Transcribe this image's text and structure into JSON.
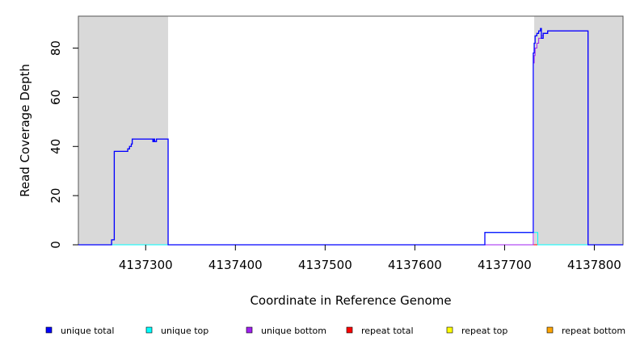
{
  "chart_data": {
    "type": "line",
    "title": "",
    "xlabel": "Coordinate in Reference Genome",
    "ylabel": "Read Coverage Depth",
    "xlim": [
      4137225,
      4137832
    ],
    "ylim": [
      0,
      93
    ],
    "x_ticks": [
      4137300,
      4137400,
      4137500,
      4137600,
      4137700,
      4137800
    ],
    "x_tick_labels": [
      "4137300",
      "4137400",
      "4137500",
      "4137600",
      "4137700",
      "4137800"
    ],
    "y_ticks": [
      0,
      20,
      40,
      60,
      80
    ],
    "y_tick_labels": [
      "0",
      "20",
      "40",
      "60",
      "80"
    ],
    "grid": false,
    "legend_position": "bottom",
    "shaded_regions": [
      [
        4137225,
        4137325
      ],
      [
        4137733,
        4137832
      ]
    ],
    "series": [
      {
        "name": "unique total",
        "color": "#0000ff",
        "step_points": [
          [
            4137225,
            0
          ],
          [
            4137262,
            0
          ],
          [
            4137262,
            2
          ],
          [
            4137265,
            2
          ],
          [
            4137265,
            38
          ],
          [
            4137280,
            38
          ],
          [
            4137280,
            39
          ],
          [
            4137282,
            39
          ],
          [
            4137282,
            40
          ],
          [
            4137284,
            40
          ],
          [
            4137284,
            41
          ],
          [
            4137285,
            41
          ],
          [
            4137285,
            43
          ],
          [
            4137308,
            43
          ],
          [
            4137308,
            42
          ],
          [
            4137309,
            42
          ],
          [
            4137309,
            43
          ],
          [
            4137310,
            43
          ],
          [
            4137310,
            42
          ],
          [
            4137312,
            42
          ],
          [
            4137312,
            43
          ],
          [
            4137325,
            43
          ],
          [
            4137325,
            0
          ],
          [
            4137678,
            0
          ],
          [
            4137678,
            5
          ],
          [
            4137732,
            5
          ],
          [
            4137732,
            78
          ],
          [
            4137733,
            78
          ],
          [
            4137733,
            82
          ],
          [
            4137734,
            82
          ],
          [
            4137734,
            85
          ],
          [
            4137736,
            85
          ],
          [
            4137736,
            86
          ],
          [
            4137738,
            86
          ],
          [
            4137738,
            87
          ],
          [
            4137740,
            87
          ],
          [
            4137740,
            88
          ],
          [
            4137741,
            88
          ],
          [
            4137741,
            84
          ],
          [
            4137743,
            84
          ],
          [
            4137743,
            86
          ],
          [
            4137748,
            86
          ],
          [
            4137748,
            87
          ],
          [
            4137793,
            87
          ],
          [
            4137793,
            0
          ],
          [
            4137832,
            0
          ]
        ]
      },
      {
        "name": "unique top",
        "color": "#00ffff",
        "step_points": [
          [
            4137225,
            0
          ],
          [
            4137678,
            0
          ],
          [
            4137678,
            5
          ],
          [
            4137737,
            5
          ],
          [
            4137737,
            0
          ],
          [
            4137832,
            0
          ]
        ]
      },
      {
        "name": "unique bottom",
        "color": "#a020f0",
        "step_points": [
          [
            4137225,
            0
          ],
          [
            4137262,
            0
          ],
          [
            4137262,
            2
          ],
          [
            4137265,
            2
          ],
          [
            4137265,
            38
          ],
          [
            4137280,
            38
          ],
          [
            4137280,
            39
          ],
          [
            4137282,
            39
          ],
          [
            4137282,
            40
          ],
          [
            4137284,
            40
          ],
          [
            4137284,
            41
          ],
          [
            4137285,
            41
          ],
          [
            4137285,
            43
          ],
          [
            4137308,
            43
          ],
          [
            4137308,
            42
          ],
          [
            4137309,
            42
          ],
          [
            4137309,
            43
          ],
          [
            4137310,
            43
          ],
          [
            4137310,
            42
          ],
          [
            4137312,
            42
          ],
          [
            4137312,
            43
          ],
          [
            4137325,
            43
          ],
          [
            4137325,
            0
          ],
          [
            4137732,
            0
          ],
          [
            4137732,
            74
          ],
          [
            4137733,
            74
          ],
          [
            4137733,
            77
          ],
          [
            4137734,
            77
          ],
          [
            4137734,
            80
          ],
          [
            4137736,
            80
          ],
          [
            4137736,
            82
          ],
          [
            4137738,
            82
          ],
          [
            4137738,
            84
          ],
          [
            4137741,
            84
          ],
          [
            4137741,
            85
          ],
          [
            4137743,
            85
          ],
          [
            4137743,
            86
          ],
          [
            4137748,
            86
          ],
          [
            4137748,
            87
          ],
          [
            4137793,
            87
          ],
          [
            4137793,
            0
          ],
          [
            4137832,
            0
          ]
        ]
      },
      {
        "name": "repeat total",
        "color": "#ff0000",
        "step_points": [
          [
            4137225,
            0
          ],
          [
            4137832,
            0
          ]
        ]
      },
      {
        "name": "repeat top",
        "color": "#ffff00",
        "step_points": [
          [
            4137225,
            0
          ],
          [
            4137832,
            0
          ]
        ]
      },
      {
        "name": "repeat bottom",
        "color": "#ffa500",
        "step_points": [
          [
            4137225,
            0
          ],
          [
            4137832,
            0
          ]
        ]
      }
    ]
  }
}
